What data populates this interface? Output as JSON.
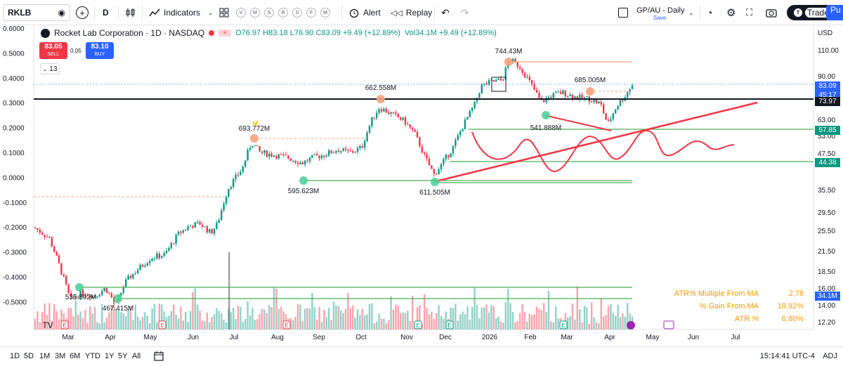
{
  "toolbar": {
    "symbol": "RKLB",
    "interval": "D",
    "indicators_label": "Indicators",
    "template_letters": [
      "V",
      "M",
      "S",
      "R",
      "S",
      "F",
      "M"
    ],
    "alert_label": "Alert",
    "replay_label": "Replay",
    "layout_name": "GP/AU - Daily",
    "layout_status": "Save",
    "trade_label": "Trade",
    "publish_label": "Pu"
  },
  "legend": {
    "title": "Rocket Lab Corporation · 1D · NASDAQ",
    "ohlc": "O76.97 H83.18 L76.90 C83.09 +9.49 (+12.89%)",
    "volume": "Vol34.1M +9.49 (+12.89%)",
    "sell_price": "83.05",
    "sell_label": "SELL",
    "spread": "0.05",
    "buy_price": "83.10",
    "buy_label": "BUY",
    "collapsed_count": "13"
  },
  "axes": {
    "left_ticks": [
      "0.6000",
      "0.5000",
      "0.4000",
      "0.3000",
      "0.2000",
      "0.1000",
      "0.0000",
      "-0.1000",
      "-0.2000",
      "-0.3000",
      "-0.4000",
      "-0.5000"
    ],
    "right_ticks": [
      "110.00",
      "90.00",
      "63.00",
      "53.00",
      "47.50",
      "35.50",
      "29.50",
      "25.50",
      "21.50",
      "18.50",
      "16.00",
      "14.00",
      "12.20"
    ],
    "currency": "USD",
    "time_labels": [
      "Mar",
      "Apr",
      "May",
      "Jun",
      "Jul",
      "Aug",
      "Sep",
      "Oct",
      "Nov",
      "Dec",
      "2026",
      "Feb",
      "Mar",
      "Apr",
      "May",
      "Jun",
      "Jul"
    ],
    "badges": [
      {
        "text": "83.09",
        "color": "#2962ff"
      },
      {
        "text": "45:17",
        "color": "#2962ff"
      },
      {
        "text": "73.97",
        "color": "#131722"
      },
      {
        "text": "57.85",
        "color": "#089981"
      },
      {
        "text": "44.38",
        "color": "#089981"
      },
      {
        "text": "34.1M",
        "color": "#2962ff"
      }
    ]
  },
  "annotations": [
    "535.892M",
    "467.415M",
    "693.772M",
    "595.623M",
    "662.558M",
    "611.505M",
    "744.43M",
    "685.005M",
    "541.888M"
  ],
  "stats": [
    {
      "label": "ATR% Multiple From MA",
      "value": "2.78"
    },
    {
      "label": "% Gain From MA",
      "value": "18.92%"
    },
    {
      "label": "ATR %",
      "value": "6.80%"
    }
  ],
  "ranges": [
    "1D",
    "5D",
    "1M",
    "3M",
    "6M",
    "YTD",
    "1Y",
    "5Y",
    "All"
  ],
  "clock": "15:14:41 UTC-4",
  "adj": "ADJ",
  "colors": {
    "up": "#089981",
    "down": "#f23645",
    "accent": "#2962ff",
    "marker_orange": "#f7a27a",
    "marker_green": "#52d39a"
  }
}
